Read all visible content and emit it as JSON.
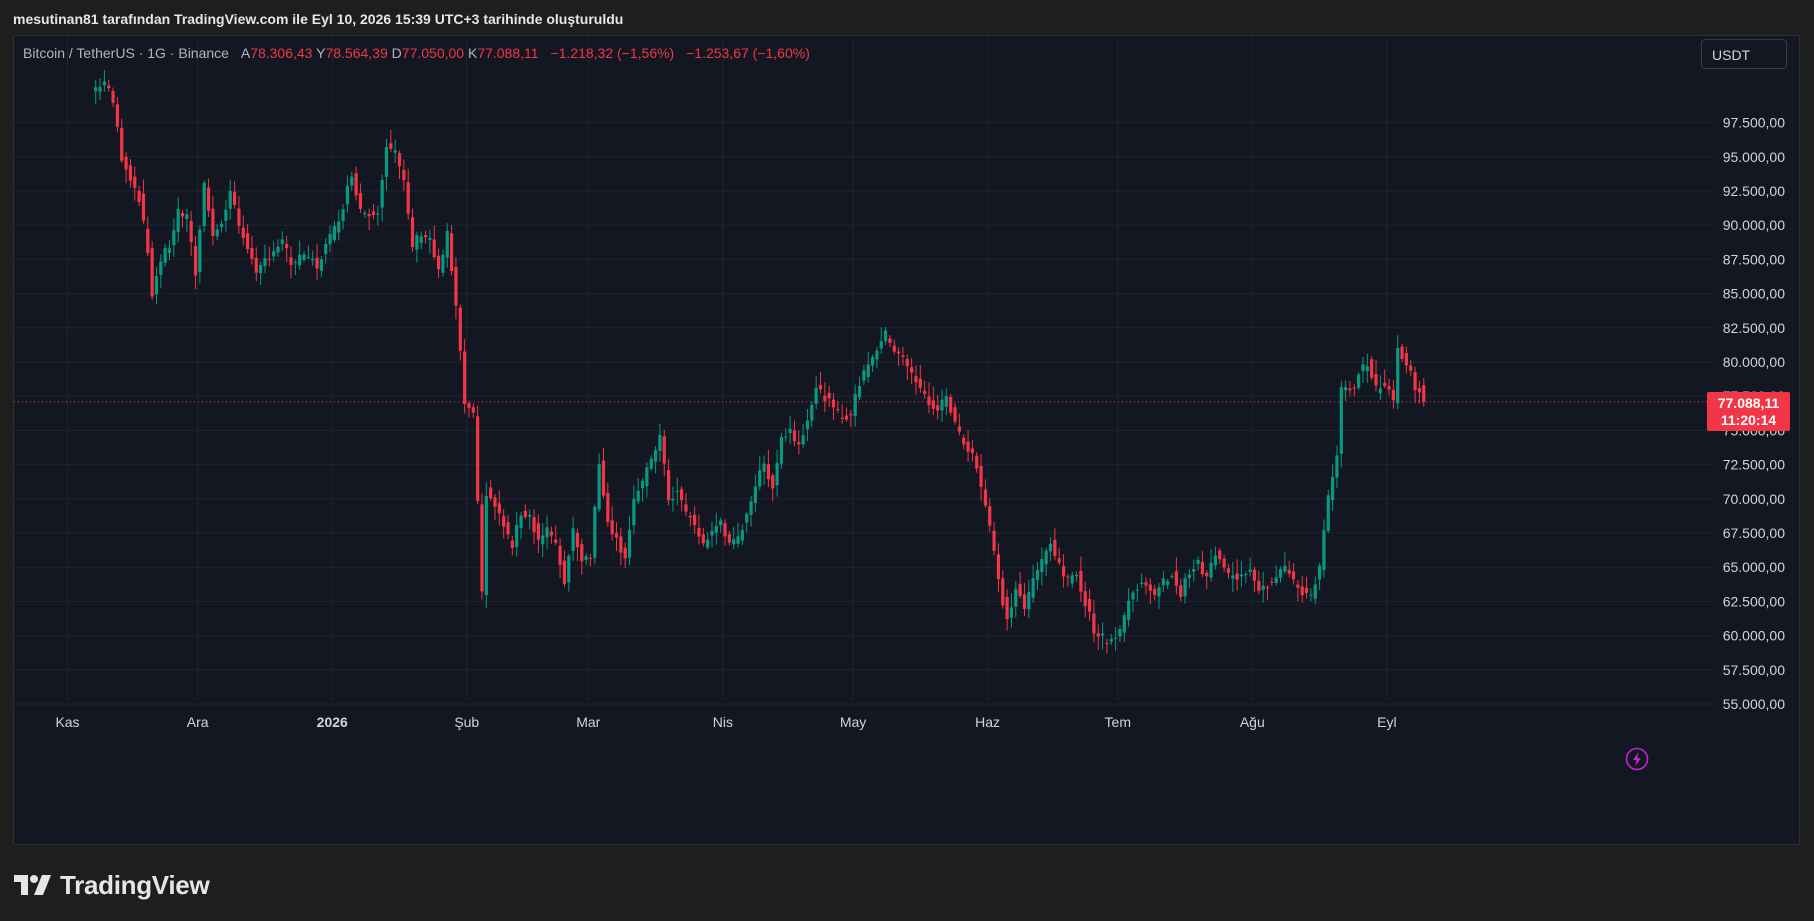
{
  "header": {
    "text": "mesutinan81 tarafından TradingView.com ile Eyl 10, 2026 15:39 UTC+3 tarihinde oluşturuldu"
  },
  "legend": {
    "symbol": "Bitcoin / TetherUS · 1G · Binance",
    "o_label": "A",
    "o_value": "78.306,43",
    "h_label": "Y",
    "h_value": "78.564,39",
    "l_label": "D",
    "l_value": "77.050,00",
    "c_label": "K",
    "c_value": "77.088,11",
    "change": "−1.218,32 (−1,56%)",
    "change2": "−1.253,67 (−1,60%)"
  },
  "currency": {
    "label": "USDT"
  },
  "price_badge": {
    "price": "77.088,11",
    "countdown": "11:20:14"
  },
  "footer": {
    "brand": "TradingView"
  },
  "colors": {
    "up": "#089981",
    "down": "#f23645",
    "background": "#131722",
    "grid": "#1f2430",
    "text": "#d1d4dc"
  },
  "icons": {
    "alert": "lightning-icon",
    "logo": "tradingview-logo-icon"
  },
  "chart_data": {
    "type": "candlestick",
    "symbol": "BTCUSDT",
    "interval": "1D",
    "ylim": [
      54000,
      100500
    ],
    "y_ticks": [
      55000,
      57500,
      60000,
      62500,
      65000,
      67500,
      70000,
      72500,
      75000,
      77500,
      80000,
      82500,
      85000,
      87500,
      90000,
      92500,
      95000,
      97500
    ],
    "y_tick_labels": [
      "55.000,00",
      "57.500,00",
      "60.000,00",
      "62.500,00",
      "65.000,00",
      "67.500,00",
      "70.000,00",
      "72.500,00",
      "75.000,00",
      "77.500,00",
      "80.000,00",
      "82.500,00",
      "85.000,00",
      "87.500,00",
      "90.000,00",
      "92.500,00",
      "95.000,00",
      "97.500,00"
    ],
    "x_ticks": [
      {
        "label": "Kas",
        "date": "2025-11-01",
        "bold": false
      },
      {
        "label": "Ara",
        "date": "2025-12-01",
        "bold": false
      },
      {
        "label": "2026",
        "date": "2026-01-01",
        "bold": true
      },
      {
        "label": "Şub",
        "date": "2026-02-01",
        "bold": false
      },
      {
        "label": "Mar",
        "date": "2026-03-01",
        "bold": false
      },
      {
        "label": "Nis",
        "date": "2026-04-01",
        "bold": false
      },
      {
        "label": "May",
        "date": "2026-05-01",
        "bold": false
      },
      {
        "label": "Haz",
        "date": "2026-06-01",
        "bold": false
      },
      {
        "label": "Tem",
        "date": "2026-07-01",
        "bold": false
      },
      {
        "label": "Ağu",
        "date": "2026-08-01",
        "bold": false
      },
      {
        "label": "Eyl",
        "date": "2026-09-01",
        "bold": false
      }
    ],
    "last_price": 77088.11,
    "closes": [
      {
        "date": "2025-11-07",
        "close": 99800
      },
      {
        "date": "2025-11-10",
        "close": 100500
      },
      {
        "date": "2025-11-12",
        "close": 99000
      },
      {
        "date": "2025-11-14",
        "close": 95000
      },
      {
        "date": "2025-11-16",
        "close": 93500
      },
      {
        "date": "2025-11-18",
        "close": 92000
      },
      {
        "date": "2025-11-20",
        "close": 88000
      },
      {
        "date": "2025-11-21",
        "close": 85000
      },
      {
        "date": "2025-11-23",
        "close": 87500
      },
      {
        "date": "2025-11-25",
        "close": 88500
      },
      {
        "date": "2025-11-27",
        "close": 91000
      },
      {
        "date": "2025-11-29",
        "close": 90500
      },
      {
        "date": "2025-12-01",
        "close": 86500
      },
      {
        "date": "2025-12-03",
        "close": 93000
      },
      {
        "date": "2025-12-05",
        "close": 89500
      },
      {
        "date": "2025-12-07",
        "close": 90000
      },
      {
        "date": "2025-12-09",
        "close": 92500
      },
      {
        "date": "2025-12-11",
        "close": 90000
      },
      {
        "date": "2025-12-13",
        "close": 88500
      },
      {
        "date": "2025-12-15",
        "close": 86200
      },
      {
        "date": "2025-12-17",
        "close": 87500
      },
      {
        "date": "2025-12-19",
        "close": 88200
      },
      {
        "date": "2025-12-21",
        "close": 88800
      },
      {
        "date": "2025-12-23",
        "close": 87200
      },
      {
        "date": "2025-12-25",
        "close": 87500
      },
      {
        "date": "2025-12-27",
        "close": 87700
      },
      {
        "date": "2025-12-29",
        "close": 87000
      },
      {
        "date": "2025-12-31",
        "close": 88500
      },
      {
        "date": "2026-01-02",
        "close": 89700
      },
      {
        "date": "2026-01-04",
        "close": 91500
      },
      {
        "date": "2026-01-06",
        "close": 93800
      },
      {
        "date": "2026-01-08",
        "close": 91200
      },
      {
        "date": "2026-01-10",
        "close": 90800
      },
      {
        "date": "2026-01-12",
        "close": 91200
      },
      {
        "date": "2026-01-14",
        "close": 96000
      },
      {
        "date": "2026-01-16",
        "close": 95300
      },
      {
        "date": "2026-01-18",
        "close": 93000
      },
      {
        "date": "2026-01-20",
        "close": 88500
      },
      {
        "date": "2026-01-22",
        "close": 89500
      },
      {
        "date": "2026-01-24",
        "close": 89000
      },
      {
        "date": "2026-01-26",
        "close": 86500
      },
      {
        "date": "2026-01-28",
        "close": 89300
      },
      {
        "date": "2026-01-30",
        "close": 84000
      },
      {
        "date": "2026-02-01",
        "close": 77000
      },
      {
        "date": "2026-02-03",
        "close": 76000
      },
      {
        "date": "2026-02-05",
        "close": 63000
      },
      {
        "date": "2026-02-06",
        "close": 70500
      },
      {
        "date": "2026-02-08",
        "close": 69500
      },
      {
        "date": "2026-02-10",
        "close": 68000
      },
      {
        "date": "2026-02-12",
        "close": 66500
      },
      {
        "date": "2026-02-14",
        "close": 69000
      },
      {
        "date": "2026-02-16",
        "close": 68800
      },
      {
        "date": "2026-02-18",
        "close": 67000
      },
      {
        "date": "2026-02-20",
        "close": 67800
      },
      {
        "date": "2026-02-22",
        "close": 66500
      },
      {
        "date": "2026-02-24",
        "close": 64000
      },
      {
        "date": "2026-02-26",
        "close": 67800
      },
      {
        "date": "2026-02-28",
        "close": 65600
      },
      {
        "date": "2026-03-02",
        "close": 66000
      },
      {
        "date": "2026-03-04",
        "close": 72500
      },
      {
        "date": "2026-03-06",
        "close": 68500
      },
      {
        "date": "2026-03-08",
        "close": 67000
      },
      {
        "date": "2026-03-10",
        "close": 65800
      },
      {
        "date": "2026-03-12",
        "close": 70000
      },
      {
        "date": "2026-03-14",
        "close": 71000
      },
      {
        "date": "2026-03-16",
        "close": 73000
      },
      {
        "date": "2026-03-18",
        "close": 74500
      },
      {
        "date": "2026-03-20",
        "close": 70000
      },
      {
        "date": "2026-03-22",
        "close": 70500
      },
      {
        "date": "2026-03-24",
        "close": 69000
      },
      {
        "date": "2026-03-26",
        "close": 68000
      },
      {
        "date": "2026-03-28",
        "close": 66700
      },
      {
        "date": "2026-03-30",
        "close": 67500
      },
      {
        "date": "2026-04-01",
        "close": 68500
      },
      {
        "date": "2026-04-03",
        "close": 66500
      },
      {
        "date": "2026-04-05",
        "close": 67000
      },
      {
        "date": "2026-04-07",
        "close": 69000
      },
      {
        "date": "2026-04-09",
        "close": 71000
      },
      {
        "date": "2026-04-11",
        "close": 72500
      },
      {
        "date": "2026-04-13",
        "close": 71000
      },
      {
        "date": "2026-04-15",
        "close": 74500
      },
      {
        "date": "2026-04-17",
        "close": 75000
      },
      {
        "date": "2026-04-19",
        "close": 74000
      },
      {
        "date": "2026-04-21",
        "close": 76000
      },
      {
        "date": "2026-04-23",
        "close": 78000
      },
      {
        "date": "2026-04-25",
        "close": 77500
      },
      {
        "date": "2026-04-27",
        "close": 76500
      },
      {
        "date": "2026-04-29",
        "close": 76000
      },
      {
        "date": "2026-05-01",
        "close": 76200
      },
      {
        "date": "2026-05-03",
        "close": 78500
      },
      {
        "date": "2026-05-05",
        "close": 80000
      },
      {
        "date": "2026-05-07",
        "close": 81000
      },
      {
        "date": "2026-05-09",
        "close": 82000
      },
      {
        "date": "2026-05-11",
        "close": 81000
      },
      {
        "date": "2026-05-13",
        "close": 80500
      },
      {
        "date": "2026-05-15",
        "close": 79000
      },
      {
        "date": "2026-05-17",
        "close": 78000
      },
      {
        "date": "2026-05-19",
        "close": 77000
      },
      {
        "date": "2026-05-21",
        "close": 76500
      },
      {
        "date": "2026-05-23",
        "close": 77500
      },
      {
        "date": "2026-05-25",
        "close": 75500
      },
      {
        "date": "2026-05-27",
        "close": 74000
      },
      {
        "date": "2026-05-29",
        "close": 73500
      },
      {
        "date": "2026-05-31",
        "close": 71000
      },
      {
        "date": "2026-06-02",
        "close": 68000
      },
      {
        "date": "2026-06-04",
        "close": 64000
      },
      {
        "date": "2026-06-06",
        "close": 61000
      },
      {
        "date": "2026-06-08",
        "close": 63500
      },
      {
        "date": "2026-06-10",
        "close": 62000
      },
      {
        "date": "2026-06-12",
        "close": 64000
      },
      {
        "date": "2026-06-14",
        "close": 65500
      },
      {
        "date": "2026-06-16",
        "close": 67000
      },
      {
        "date": "2026-06-18",
        "close": 65000
      },
      {
        "date": "2026-06-20",
        "close": 64000
      },
      {
        "date": "2026-06-22",
        "close": 64500
      },
      {
        "date": "2026-06-24",
        "close": 62500
      },
      {
        "date": "2026-06-26",
        "close": 60500
      },
      {
        "date": "2026-06-28",
        "close": 59800
      },
      {
        "date": "2026-06-30",
        "close": 59700
      },
      {
        "date": "2026-07-02",
        "close": 60500
      },
      {
        "date": "2026-07-04",
        "close": 62500
      },
      {
        "date": "2026-07-06",
        "close": 63500
      },
      {
        "date": "2026-07-08",
        "close": 64000
      },
      {
        "date": "2026-07-10",
        "close": 62800
      },
      {
        "date": "2026-07-12",
        "close": 63900
      },
      {
        "date": "2026-07-14",
        "close": 64500
      },
      {
        "date": "2026-07-16",
        "close": 63000
      },
      {
        "date": "2026-07-18",
        "close": 64800
      },
      {
        "date": "2026-07-20",
        "close": 65200
      },
      {
        "date": "2026-07-22",
        "close": 64200
      },
      {
        "date": "2026-07-24",
        "close": 66000
      },
      {
        "date": "2026-07-26",
        "close": 64800
      },
      {
        "date": "2026-07-28",
        "close": 64200
      },
      {
        "date": "2026-07-30",
        "close": 64500
      },
      {
        "date": "2026-08-01",
        "close": 65000
      },
      {
        "date": "2026-08-03",
        "close": 63500
      },
      {
        "date": "2026-08-05",
        "close": 63800
      },
      {
        "date": "2026-08-07",
        "close": 64500
      },
      {
        "date": "2026-08-09",
        "close": 65100
      },
      {
        "date": "2026-08-11",
        "close": 63800
      },
      {
        "date": "2026-08-13",
        "close": 63200
      },
      {
        "date": "2026-08-15",
        "close": 63000
      },
      {
        "date": "2026-08-17",
        "close": 65000
      },
      {
        "date": "2026-08-19",
        "close": 70000
      },
      {
        "date": "2026-08-21",
        "close": 73000
      },
      {
        "date": "2026-08-22",
        "close": 78000
      },
      {
        "date": "2026-08-24",
        "close": 77800
      },
      {
        "date": "2026-08-26",
        "close": 79000
      },
      {
        "date": "2026-08-28",
        "close": 80000
      },
      {
        "date": "2026-08-30",
        "close": 78000
      },
      {
        "date": "2026-09-01",
        "close": 78500
      },
      {
        "date": "2026-09-03",
        "close": 77000
      },
      {
        "date": "2026-09-04",
        "close": 81000
      },
      {
        "date": "2026-09-06",
        "close": 80000
      },
      {
        "date": "2026-09-08",
        "close": 78300
      },
      {
        "date": "2026-09-10",
        "close": 77088
      }
    ]
  }
}
